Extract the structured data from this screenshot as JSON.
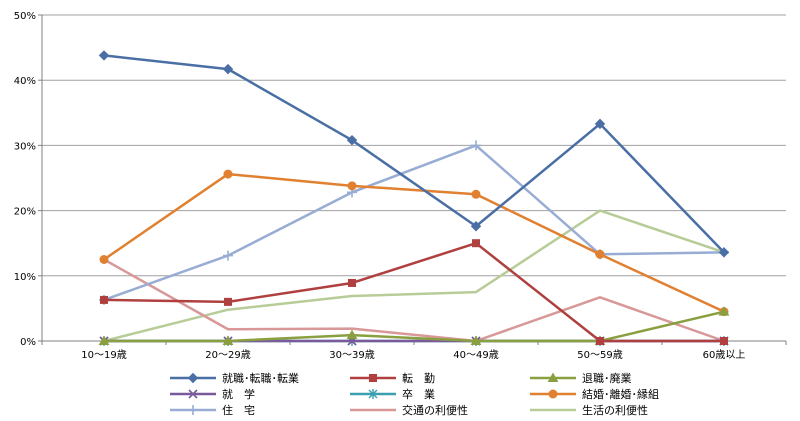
{
  "chart_data": {
    "type": "line",
    "categories": [
      "10～19歳",
      "20～29歳",
      "30～39歳",
      "40～49歳",
      "50～59歳",
      "60歳以上"
    ],
    "ylim": [
      0,
      50
    ],
    "yticks": [
      0,
      10,
      20,
      30,
      40,
      50
    ],
    "ytick_labels": [
      "0%",
      "10%",
      "20%",
      "30%",
      "40%",
      "50%"
    ],
    "grid": true,
    "legend_position": "bottom",
    "series": [
      {
        "name": "就職･転職･転業",
        "color": "#4a6fa5",
        "marker": "diamond",
        "values": [
          43.8,
          41.7,
          30.8,
          17.6,
          33.3,
          13.6
        ]
      },
      {
        "name": "転　勤",
        "color": "#b04040",
        "marker": "square",
        "values": [
          6.3,
          6.0,
          8.9,
          15.0,
          0.0,
          0.0
        ]
      },
      {
        "name": "退職･廃業",
        "color": "#8aa040",
        "marker": "triangle",
        "values": [
          0.0,
          0.0,
          0.9,
          0.0,
          0.0,
          4.5
        ]
      },
      {
        "name": "就　学",
        "color": "#7a5a9a",
        "marker": "x",
        "values": [
          0.0,
          0.0,
          0.0,
          0.0,
          0.0,
          0.0
        ]
      },
      {
        "name": "卒　業",
        "color": "#3aa0b0",
        "marker": "star",
        "values": [
          0.0,
          0.0,
          0.0,
          0.0,
          0.0,
          0.0
        ]
      },
      {
        "name": "結婚･離婚･縁組",
        "color": "#e08030",
        "marker": "circle",
        "values": [
          12.5,
          25.6,
          23.8,
          22.5,
          13.3,
          4.5
        ]
      },
      {
        "name": "住　宅",
        "color": "#98acd4",
        "marker": "plus",
        "values": [
          6.3,
          13.1,
          22.8,
          30.0,
          13.3,
          13.6
        ]
      },
      {
        "name": "交通の利便性",
        "color": "#d89898",
        "marker": "none",
        "values": [
          12.5,
          1.8,
          1.9,
          0.0,
          6.7,
          0.0
        ]
      },
      {
        "name": "生活の利便性",
        "color": "#b8cc98",
        "marker": "none",
        "values": [
          0.0,
          4.8,
          6.9,
          7.5,
          20.0,
          13.6
        ]
      }
    ]
  }
}
